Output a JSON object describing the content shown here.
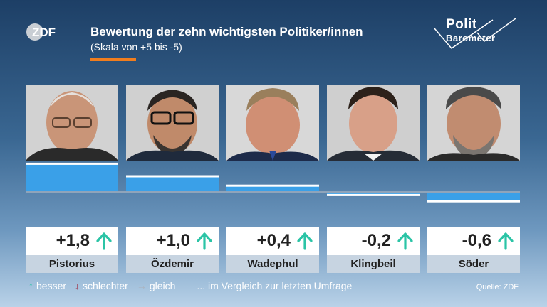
{
  "header": {
    "title": "Bewertung der zehn wichtigsten Politiker/innen",
    "subtitle": "(Skala von +5 bis -5)",
    "logo_left": "ZDF",
    "logo_right_line1": "Polit",
    "logo_right_line2": "Barometer"
  },
  "colors": {
    "bar": "#3aa0e8",
    "accent": "#f07d1e",
    "arrow_up": "#2bc4a6",
    "arrow_down": "#a0243a",
    "arrow_same": "#aab4c0"
  },
  "chart_data": {
    "type": "bar",
    "title": "Bewertung der zehn wichtigsten Politiker/innen",
    "subtitle": "(Skala von +5 bis -5)",
    "categories": [
      "Pistorius",
      "Özdemir",
      "Wadephul",
      "Klingbeil",
      "Söder"
    ],
    "values": [
      1.8,
      1.0,
      0.4,
      -0.2,
      -0.6
    ],
    "labels": [
      "+1,8",
      "+1,0",
      "+0,4",
      "-0,2",
      "-0,6"
    ],
    "trend": [
      "up",
      "up",
      "up",
      "up",
      "up"
    ],
    "ylim": [
      -5,
      5
    ],
    "xlabel": "",
    "ylabel": ""
  },
  "legend": {
    "better": "besser",
    "worse": "schlechter",
    "same": "gleich",
    "comparison": "... im Vergleich zur letzten Umfrage"
  },
  "source": "Quelle: ZDF"
}
